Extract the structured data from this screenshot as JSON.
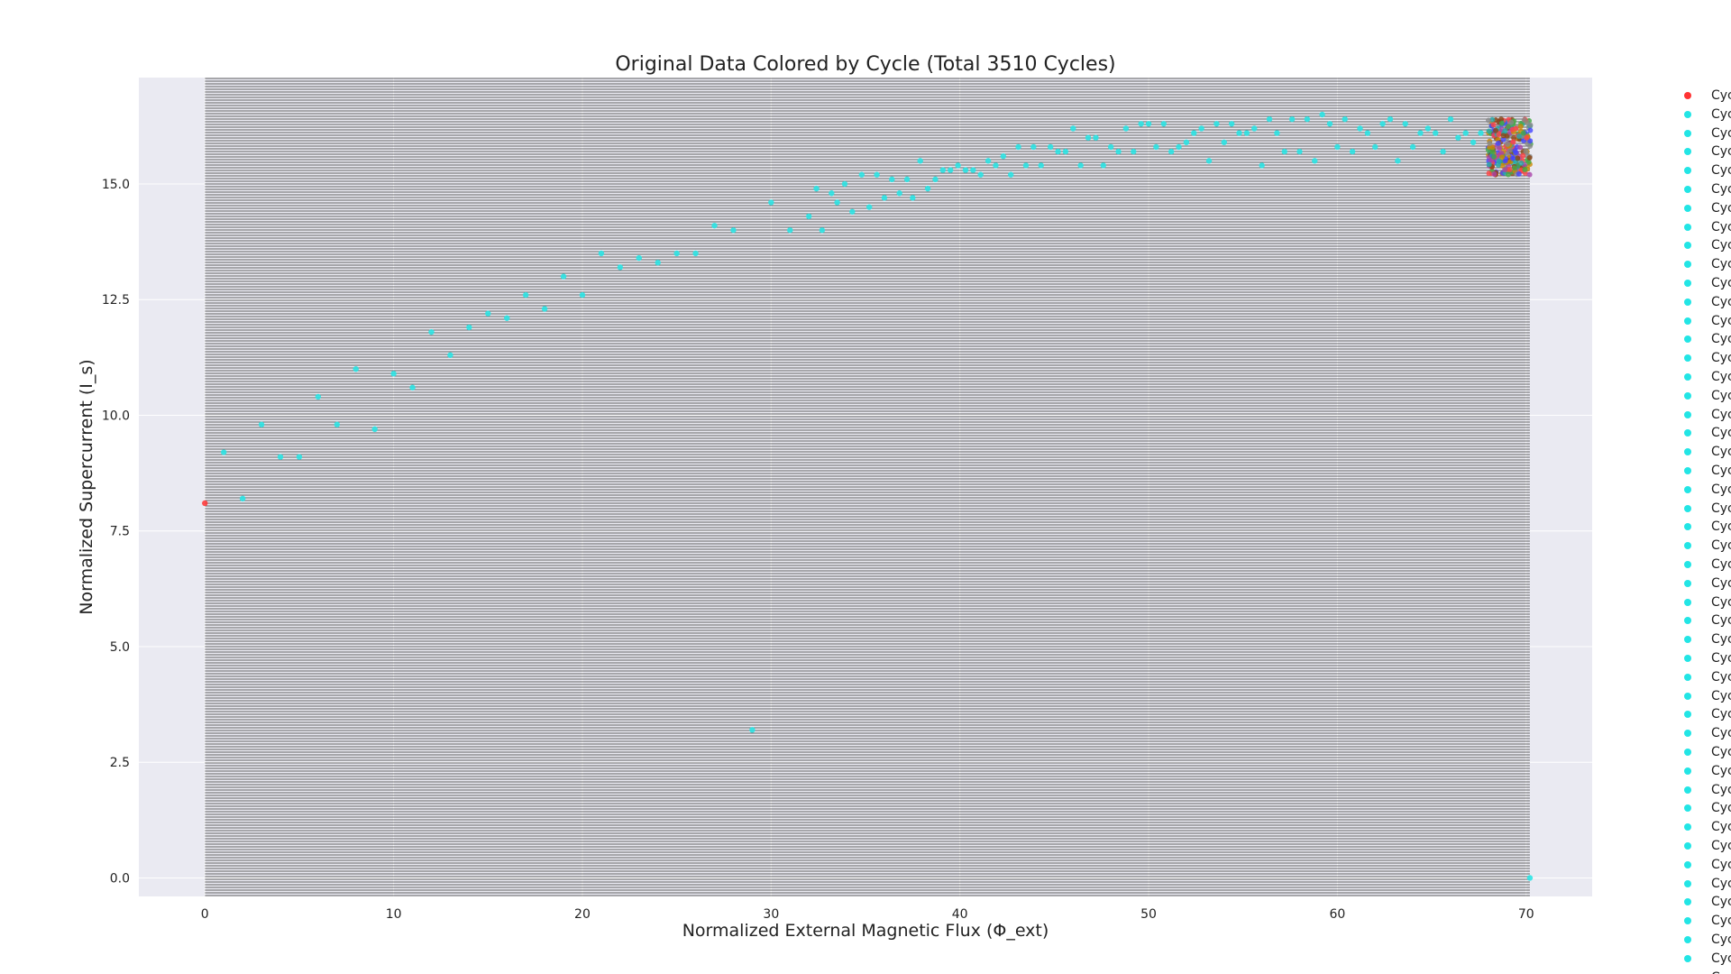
{
  "chart_data": {
    "type": "scatter",
    "title": "Original Data Colored by Cycle (Total 3510 Cycles)",
    "xlabel": "Normalized External Magnetic Flux (Φ_ext)",
    "ylabel": "Normalized Supercurrent (I_s)",
    "xlim": [
      -3.5,
      73.5
    ],
    "ylim": [
      -0.4,
      17.3
    ],
    "x_ticks": [
      0,
      10,
      20,
      30,
      40,
      50,
      60,
      70
    ],
    "x_tick_labels": [
      "0",
      "10",
      "20",
      "30",
      "40",
      "50",
      "60",
      "70"
    ],
    "y_ticks": [
      0.0,
      2.5,
      5.0,
      7.5,
      10.0,
      12.5,
      15.0
    ],
    "y_tick_labels": [
      "0.0",
      "2.5",
      "5.0",
      "7.5",
      "10.0",
      "12.5",
      "15.0"
    ],
    "grid": true,
    "legend_placement": "outside-right",
    "background": "#eaeaf2",
    "line_color": "#333333",
    "colors": {
      "first_cycle": "#ff3333",
      "cycle": "#22e5e5",
      "cluster": [
        "#8b4513",
        "#ff4444",
        "#4444ff",
        "#44aa44",
        "#aa44aa",
        "#cc8800",
        "#888888",
        "#22aaaa"
      ]
    },
    "series": [
      {
        "color": "#ff3333",
        "x": [
          0
        ],
        "y": [
          8.1
        ]
      },
      {
        "color": "#22e5e5",
        "x": [
          1,
          2,
          3,
          4,
          5,
          6,
          7,
          8,
          9,
          10,
          11,
          12,
          13,
          14,
          15,
          16,
          17,
          18,
          19,
          20,
          21,
          22,
          23,
          24,
          25,
          26,
          27,
          28,
          29,
          30,
          31,
          32,
          32.4,
          32.7,
          33.2,
          33.5,
          33.9,
          34.3,
          34.8,
          35.2,
          35.6,
          36.0,
          36.4,
          36.8,
          37.2,
          37.5,
          37.9,
          38.3,
          38.7,
          39.1,
          39.5,
          39.9,
          40.3,
          40.7,
          41.1,
          41.5,
          41.9,
          42.3,
          42.7,
          43.1,
          43.5,
          43.9,
          44.3,
          44.8,
          45.2,
          45.6,
          46.0,
          46.4,
          46.8,
          47.2,
          47.6,
          48.0,
          48.4,
          48.8,
          49.2,
          49.6,
          50.0,
          50.4,
          50.8,
          51.2,
          51.6,
          52.0,
          52.4,
          52.8,
          53.2,
          53.6,
          54.0,
          54.4,
          54.8,
          55.2,
          55.6,
          56.0,
          56.4,
          56.8,
          57.2,
          57.6,
          58.0,
          58.4,
          58.8,
          59.2,
          59.6,
          60.0,
          60.4,
          60.8,
          61.2,
          61.6,
          62.0,
          62.4,
          62.8,
          63.2,
          63.6,
          64.0,
          64.4,
          64.8,
          65.2,
          65.6,
          66.0,
          66.4,
          66.8,
          67.2,
          67.6,
          70.2
        ],
        "y": [
          9.2,
          8.2,
          9.8,
          9.1,
          9.1,
          10.4,
          9.8,
          11.0,
          9.7,
          10.9,
          10.6,
          11.8,
          11.3,
          11.9,
          12.2,
          12.1,
          12.6,
          12.3,
          13.0,
          12.6,
          13.5,
          13.2,
          13.4,
          13.3,
          13.5,
          13.5,
          14.1,
          14.0,
          3.2,
          14.6,
          14.0,
          14.3,
          14.9,
          14.0,
          14.8,
          14.6,
          15.0,
          14.4,
          15.2,
          14.5,
          15.2,
          14.7,
          15.1,
          14.8,
          15.1,
          14.7,
          15.5,
          14.9,
          15.1,
          15.3,
          15.3,
          15.4,
          15.3,
          15.3,
          15.2,
          15.5,
          15.4,
          15.6,
          15.2,
          15.8,
          15.4,
          15.8,
          15.4,
          15.8,
          15.7,
          15.7,
          16.2,
          15.4,
          16.0,
          16.0,
          15.4,
          15.8,
          15.7,
          16.2,
          15.7,
          16.3,
          16.3,
          15.8,
          16.3,
          15.7,
          15.8,
          15.9,
          16.1,
          16.2,
          15.5,
          16.3,
          15.9,
          16.3,
          16.1,
          16.1,
          16.2,
          15.4,
          16.4,
          16.1,
          15.7,
          16.4,
          15.7,
          16.4,
          15.5,
          16.5,
          16.3,
          15.8,
          16.4,
          15.7,
          16.2,
          16.1,
          15.8,
          16.3,
          16.4,
          15.5,
          16.3,
          15.8,
          16.1,
          16.2,
          16.1,
          15.7,
          16.4,
          16.0,
          16.1,
          15.9,
          16.1,
          0.0
        ]
      }
    ],
    "cluster": {
      "x_range": [
        68.0,
        70.3
      ],
      "y_range": [
        15.2,
        16.4
      ],
      "count": 260
    },
    "horizontal_line_count": 3510
  },
  "legend": {
    "items": [
      {
        "label": "Cyc",
        "color": "#ff3333"
      },
      {
        "label": "Cyc",
        "color": "#22e5e5"
      },
      {
        "label": "Cyc",
        "color": "#22e5e5"
      },
      {
        "label": "Cyc",
        "color": "#22e5e5"
      },
      {
        "label": "Cyc",
        "color": "#22e5e5"
      },
      {
        "label": "Cyc",
        "color": "#22e5e5"
      },
      {
        "label": "Cyc",
        "color": "#22e5e5"
      },
      {
        "label": "Cyc",
        "color": "#22e5e5"
      },
      {
        "label": "Cyc",
        "color": "#22e5e5"
      },
      {
        "label": "Cyc",
        "color": "#22e5e5"
      },
      {
        "label": "Cyc",
        "color": "#22e5e5"
      },
      {
        "label": "Cyc",
        "color": "#22e5e5"
      },
      {
        "label": "Cyc",
        "color": "#22e5e5"
      },
      {
        "label": "Cyc",
        "color": "#22e5e5"
      },
      {
        "label": "Cyc",
        "color": "#22e5e5"
      },
      {
        "label": "Cyc",
        "color": "#22e5e5"
      },
      {
        "label": "Cyc",
        "color": "#22e5e5"
      },
      {
        "label": "Cyc",
        "color": "#22e5e5"
      },
      {
        "label": "Cyc",
        "color": "#22e5e5"
      },
      {
        "label": "Cyc",
        "color": "#22e5e5"
      },
      {
        "label": "Cyc",
        "color": "#22e5e5"
      },
      {
        "label": "Cyc",
        "color": "#22e5e5"
      },
      {
        "label": "Cyc",
        "color": "#22e5e5"
      },
      {
        "label": "Cyc",
        "color": "#22e5e5"
      },
      {
        "label": "Cyc",
        "color": "#22e5e5"
      },
      {
        "label": "Cyc",
        "color": "#22e5e5"
      },
      {
        "label": "Cyc",
        "color": "#22e5e5"
      },
      {
        "label": "Cyc",
        "color": "#22e5e5"
      },
      {
        "label": "Cyc",
        "color": "#22e5e5"
      },
      {
        "label": "Cyc",
        "color": "#22e5e5"
      },
      {
        "label": "Cyc",
        "color": "#22e5e5"
      },
      {
        "label": "Cyc",
        "color": "#22e5e5"
      },
      {
        "label": "Cyc",
        "color": "#22e5e5"
      },
      {
        "label": "Cyc",
        "color": "#22e5e5"
      },
      {
        "label": "Cyc",
        "color": "#22e5e5"
      },
      {
        "label": "Cyc",
        "color": "#22e5e5"
      },
      {
        "label": "Cyc",
        "color": "#22e5e5"
      },
      {
        "label": "Cyc",
        "color": "#22e5e5"
      },
      {
        "label": "Cyc",
        "color": "#22e5e5"
      },
      {
        "label": "Cyc",
        "color": "#22e5e5"
      },
      {
        "label": "Cyc",
        "color": "#22e5e5"
      },
      {
        "label": "Cyc",
        "color": "#22e5e5"
      },
      {
        "label": "Cyc",
        "color": "#22e5e5"
      },
      {
        "label": "Cyc",
        "color": "#22e5e5"
      },
      {
        "label": "Cyc",
        "color": "#22e5e5"
      },
      {
        "label": "Cyc",
        "color": "#22e5e5"
      },
      {
        "label": "Cyc",
        "color": "#22e5e5"
      },
      {
        "label": "Cyc",
        "color": "#22e5e5"
      }
    ]
  }
}
